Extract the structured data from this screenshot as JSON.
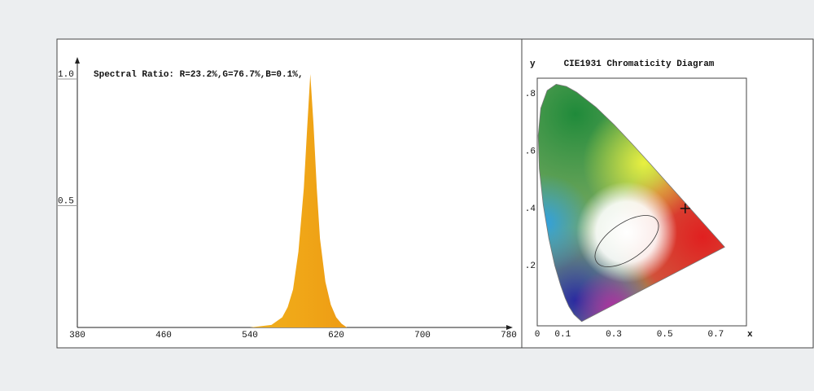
{
  "chart_data": [
    {
      "type": "area",
      "title": "Spectral Ratio:  R=23.2%,G=76.7%,B=0.1%,",
      "x": [
        380,
        540,
        560,
        570,
        575,
        580,
        585,
        590,
        593,
        596,
        599,
        602,
        605,
        610,
        615,
        620,
        625,
        630,
        700,
        780
      ],
      "values": [
        0,
        0,
        0.01,
        0.04,
        0.08,
        0.15,
        0.3,
        0.55,
        0.78,
        1.0,
        0.8,
        0.55,
        0.35,
        0.18,
        0.09,
        0.04,
        0.015,
        0,
        0,
        0
      ],
      "xlim": [
        380,
        780
      ],
      "ylim": [
        0,
        1
      ],
      "xticks": [
        380,
        460,
        540,
        620,
        700,
        780
      ],
      "yticks": [
        {
          "value": 1,
          "label": "1.0"
        },
        0.5
      ]
    },
    {
      "type": "chromaticity",
      "title": "CIE1931 Chromaticity Diagram",
      "x_label": "x",
      "y_label": "y",
      "locus": {
        "x": [
          0.1741,
          0.144,
          0.1241,
          0.1096,
          0.0913,
          0.0687,
          0.0454,
          0.0235,
          0.0082,
          0.0039,
          0.0139,
          0.0389,
          0.0743,
          0.1142,
          0.1547,
          0.2296,
          0.3016,
          0.3731,
          0.4441,
          0.5125,
          0.5752,
          0.627,
          0.6915,
          0.7347
        ],
        "y": [
          0.005,
          0.0297,
          0.0578,
          0.0868,
          0.1327,
          0.2007,
          0.295,
          0.4127,
          0.5384,
          0.6548,
          0.7502,
          0.812,
          0.8338,
          0.8262,
          0.8059,
          0.7543,
          0.6923,
          0.6245,
          0.5547,
          0.4866,
          0.4242,
          0.3725,
          0.3083,
          0.2653
        ]
      },
      "point": {
        "x": 0.58,
        "y": 0.4
      },
      "xlim": [
        0,
        0.82
      ],
      "ylim": [
        -0.01,
        0.855
      ],
      "xticks": [
        0,
        0.1,
        0.3,
        0.5,
        0.7
      ],
      "yticks": [
        {
          "value": 0.2,
          "label": ".2"
        },
        {
          "value": 0.4,
          "label": ".4"
        },
        {
          "value": 0.6,
          "label": ".6"
        },
        {
          "value": 0.8,
          "label": ".8"
        }
      ]
    }
  ]
}
